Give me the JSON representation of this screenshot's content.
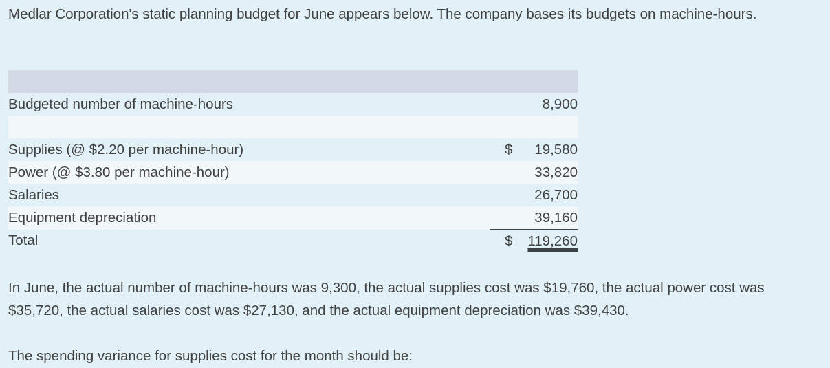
{
  "intro": "Medlar Corporation's static planning budget for June appears below. The company bases its budgets on machine-hours.",
  "budget": {
    "machine_hours": {
      "label": "Budgeted number of machine-hours",
      "value": "8,900"
    },
    "rows": [
      {
        "label": "Supplies (@ $2.20 per machine-hour)",
        "currency": "$",
        "value": "19,580"
      },
      {
        "label": "Power (@ $3.80 per machine-hour)",
        "currency": "",
        "value": "33,820"
      },
      {
        "label": "Salaries",
        "currency": "",
        "value": "26,700"
      },
      {
        "label": "Equipment depreciation",
        "currency": "",
        "value": "39,160"
      }
    ],
    "total": {
      "label": "Total",
      "currency": "$",
      "value": "119,260"
    }
  },
  "followup": "In June, the actual number of machine-hours was 9,300, the actual supplies cost was $19,760, the actual power cost was $35,720, the actual salaries cost was $27,130, and the actual equipment depreciation was $39,430.",
  "question": "The spending variance for supplies cost for the month should be:"
}
